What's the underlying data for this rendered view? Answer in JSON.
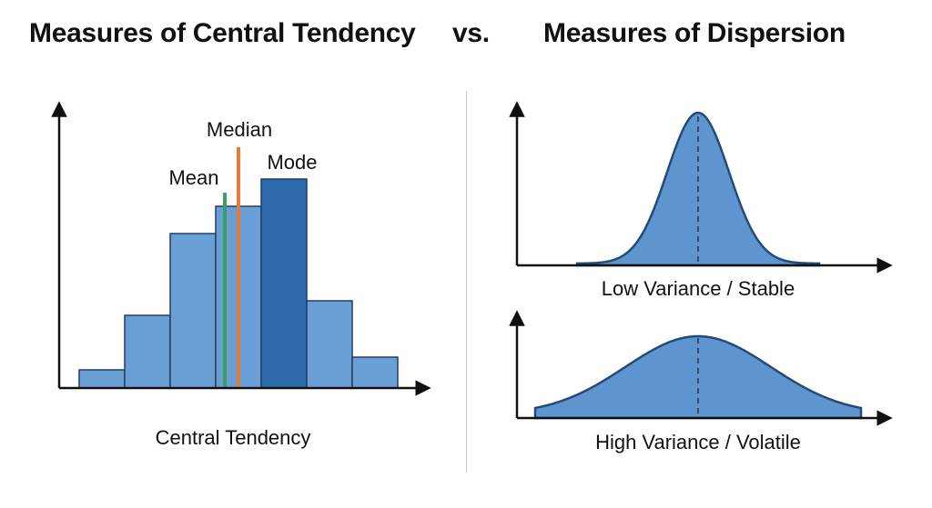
{
  "headings": {
    "left": "Measures of Central Tendency",
    "vs": "vs.",
    "right": "Measures of Dispersion"
  },
  "central": {
    "caption": "Central Tendency",
    "labels": {
      "mean": "Mean",
      "median": "Median",
      "mode": "Mode"
    },
    "bars": [
      1,
      4,
      8.5,
      10,
      11.5,
      4.8,
      1.7
    ],
    "mode_index": 4,
    "mean_at": 3.2,
    "median_at": 3.5
  },
  "dispersion": {
    "low": {
      "caption": "Low Variance / Stable"
    },
    "high": {
      "caption": "High Variance / Volatile"
    }
  },
  "colors": {
    "bar": "#6a9fd6",
    "bar_mode": "#2f6aad",
    "outline": "#1e3f66",
    "mean_line": "#3aa065",
    "median_line": "#e07e3b",
    "curve_fill": "#5f95cf",
    "curve_stroke": "#244a78",
    "axis": "#111111"
  }
}
